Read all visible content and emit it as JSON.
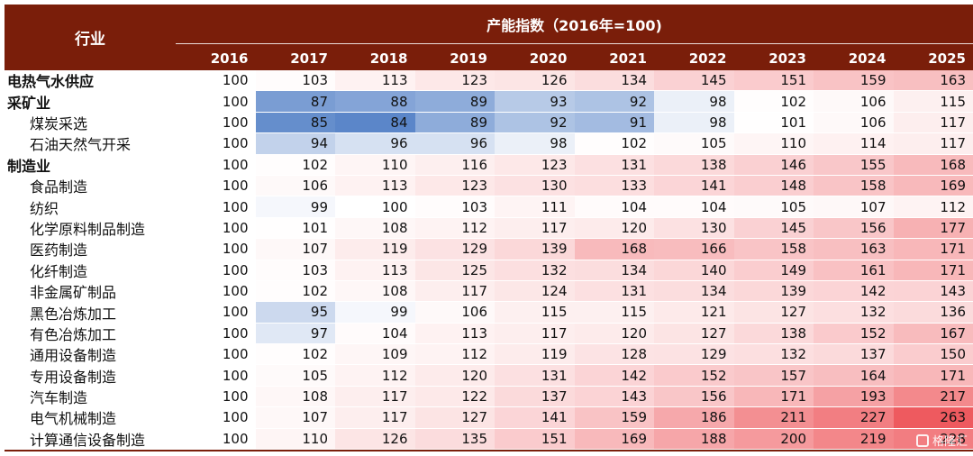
{
  "header": {
    "industry_label": "行业",
    "title": "产能指数（2016年=100)",
    "years": [
      "2016",
      "2017",
      "2018",
      "2019",
      "2020",
      "2021",
      "2022",
      "2023",
      "2024",
      "2025"
    ]
  },
  "colors": {
    "header_bg": "#7a1e0a",
    "low": "#5b86c9",
    "mid": "#ffffff",
    "high": "#ee5a5f"
  },
  "watermark": "格隆汇",
  "chart_data": {
    "type": "heatmap",
    "title": "产能指数（2016年=100)",
    "x": [
      "2016",
      "2017",
      "2018",
      "2019",
      "2020",
      "2021",
      "2022",
      "2023",
      "2024",
      "2025"
    ],
    "rows": [
      {
        "name": "电热气水供应",
        "level": "category",
        "values": [
          100,
          103,
          113,
          123,
          126,
          134,
          145,
          151,
          159,
          163
        ]
      },
      {
        "name": "采矿业",
        "level": "category",
        "values": [
          100,
          87,
          88,
          89,
          93,
          92,
          98,
          102,
          106,
          115
        ]
      },
      {
        "name": "煤炭采选",
        "level": "sub",
        "values": [
          100,
          85,
          84,
          89,
          92,
          91,
          98,
          101,
          106,
          117
        ]
      },
      {
        "name": "石油天然气开采",
        "level": "sub",
        "values": [
          100,
          94,
          96,
          96,
          98,
          102,
          105,
          110,
          114,
          117
        ]
      },
      {
        "name": "制造业",
        "level": "category",
        "values": [
          100,
          102,
          110,
          116,
          123,
          131,
          138,
          146,
          155,
          168
        ]
      },
      {
        "name": "食品制造",
        "level": "sub",
        "values": [
          100,
          106,
          113,
          123,
          130,
          133,
          141,
          148,
          158,
          169
        ]
      },
      {
        "name": "纺织",
        "level": "sub",
        "values": [
          100,
          99,
          100,
          103,
          111,
          104,
          104,
          105,
          107,
          112
        ]
      },
      {
        "name": "化学原料制品制造",
        "level": "sub",
        "values": [
          100,
          101,
          108,
          112,
          117,
          120,
          130,
          145,
          156,
          177
        ]
      },
      {
        "name": "医药制造",
        "level": "sub",
        "values": [
          100,
          107,
          119,
          129,
          139,
          168,
          166,
          158,
          163,
          171
        ]
      },
      {
        "name": "化纤制造",
        "level": "sub",
        "values": [
          100,
          103,
          113,
          125,
          132,
          134,
          140,
          149,
          161,
          171
        ]
      },
      {
        "name": "非金属矿制品",
        "level": "sub",
        "values": [
          100,
          102,
          108,
          117,
          124,
          131,
          134,
          139,
          142,
          143
        ]
      },
      {
        "name": "黑色冶炼加工",
        "level": "sub",
        "values": [
          100,
          95,
          99,
          106,
          115,
          115,
          121,
          127,
          132,
          136
        ]
      },
      {
        "name": "有色冶炼加工",
        "level": "sub",
        "values": [
          100,
          97,
          104,
          113,
          117,
          120,
          127,
          138,
          152,
          167
        ]
      },
      {
        "name": "通用设备制造",
        "level": "sub",
        "values": [
          100,
          102,
          109,
          112,
          119,
          128,
          129,
          132,
          137,
          150
        ]
      },
      {
        "name": "专用设备制造",
        "level": "sub",
        "values": [
          100,
          105,
          112,
          120,
          131,
          142,
          152,
          157,
          164,
          171
        ]
      },
      {
        "name": "汽车制造",
        "level": "sub",
        "values": [
          100,
          108,
          117,
          122,
          137,
          143,
          156,
          171,
          193,
          217
        ]
      },
      {
        "name": "电气机械制造",
        "level": "sub",
        "values": [
          100,
          107,
          117,
          127,
          141,
          159,
          186,
          211,
          227,
          263
        ]
      },
      {
        "name": "计算通信设备制造",
        "level": "sub",
        "values": [
          100,
          110,
          126,
          135,
          151,
          169,
          188,
          200,
          219,
          228
        ]
      }
    ]
  }
}
